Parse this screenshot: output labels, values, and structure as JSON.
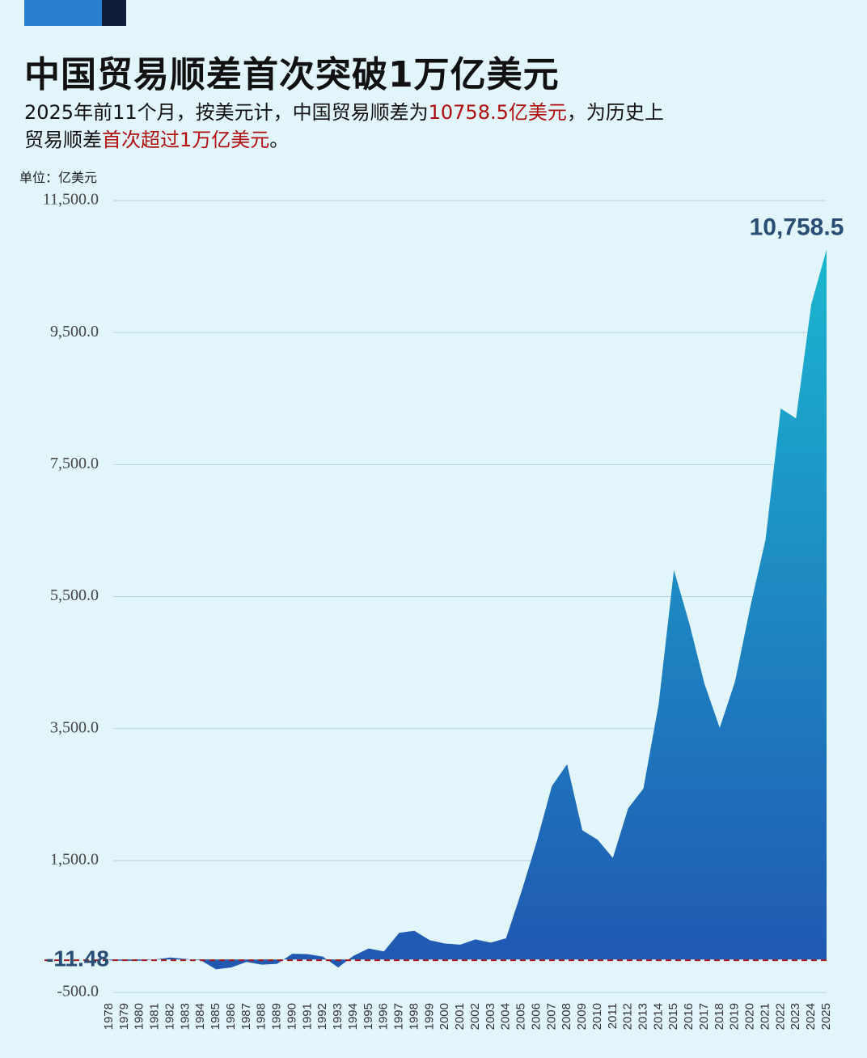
{
  "chart_data": {
    "type": "area",
    "title": "中国贸易顺差首次突破1万亿美元",
    "subtitle_parts": [
      "2025年前11个月，按美元计，中国贸易顺差为",
      "10758.5亿美元",
      "，为历史上",
      "贸易顺差",
      "首次超过1万亿美元",
      "。"
    ],
    "highlight_color": "#b00c0c",
    "unit_label": "单位：亿美元",
    "categories": [
      "1978",
      "1979",
      "1980",
      "1981",
      "1982",
      "1983",
      "1984",
      "1985",
      "1986",
      "1987",
      "1988",
      "1989",
      "1990",
      "1991",
      "1992",
      "1993",
      "1994",
      "1995",
      "1996",
      "1997",
      "1998",
      "1999",
      "2000",
      "2001",
      "2002",
      "2003",
      "2004",
      "2005",
      "2006",
      "2007",
      "2008",
      "2009",
      "2010",
      "2011",
      "2012",
      "2013",
      "2014",
      "2015",
      "2016",
      "2017",
      "2018",
      "2019",
      "2020",
      "2021",
      "2022",
      "2023",
      "2024",
      "2025"
    ],
    "values": [
      -11.48,
      -20,
      -19,
      0,
      30,
      8,
      -13,
      -149,
      -120,
      -38,
      -78,
      -66,
      87,
      81,
      44,
      -122,
      54,
      167,
      122,
      404,
      435,
      292,
      241,
      225,
      304,
      255,
      321,
      1020,
      1775,
      2625,
      2960,
      1957,
      1815,
      1540,
      2290,
      2590,
      3870,
      5900,
      5100,
      4180,
      3510,
      4210,
      5340,
      6360,
      8350,
      8200,
      9930,
      10758.5
    ],
    "value_labels": [
      null,
      null,
      null,
      null,
      null,
      null,
      null,
      null,
      null,
      null,
      null,
      null,
      null,
      null,
      null,
      null,
      null,
      null,
      null,
      null,
      null,
      null,
      null,
      null,
      null,
      null,
      null,
      null,
      null,
      null,
      null,
      null,
      null,
      null,
      null,
      null,
      null,
      null,
      null,
      null,
      null,
      null,
      null,
      null,
      null,
      null,
      null,
      "10,758.5"
    ],
    "colors": [
      "#1bb6d0",
      "#2057b2"
    ],
    "ylim": [
      -500,
      11500
    ],
    "yticks": [
      {
        "value": 11500,
        "label": "11,500.0"
      },
      {
        "value": 9500,
        "label": "9,500.0"
      },
      {
        "value": 7500,
        "label": "7,500.0"
      },
      {
        "value": 5500,
        "label": "5,500.0"
      },
      {
        "value": 3500,
        "label": "3,500.0"
      },
      {
        "value": 1500,
        "label": "1,500.0"
      },
      {
        "value": -500,
        "label": "-500.0"
      }
    ],
    "grid": true,
    "reference_line": {
      "value": -11.48,
      "color": "#a31a1a"
    }
  }
}
